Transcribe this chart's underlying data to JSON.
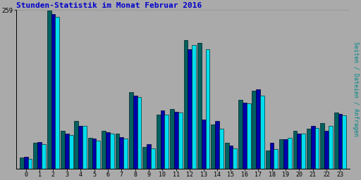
{
  "title": "Stunden-Statistik im Monat Februar 2016",
  "ylabel": "Seiten / Dateien / Anfragen",
  "hours": [
    0,
    1,
    2,
    3,
    4,
    5,
    6,
    7,
    8,
    9,
    10,
    11,
    12,
    13,
    14,
    15,
    16,
    17,
    18,
    19,
    20,
    21,
    22,
    23
  ],
  "ymax": 259,
  "bg_color": "#aaaaaa",
  "title_color": "#0000cc",
  "ylabel_color": "#008888",
  "bar_green": [
    18,
    42,
    258,
    62,
    78,
    50,
    62,
    58,
    125,
    36,
    88,
    98,
    210,
    205,
    72,
    42,
    112,
    128,
    30,
    48,
    62,
    65,
    75,
    92
  ],
  "bar_blue": [
    20,
    44,
    253,
    57,
    70,
    49,
    60,
    52,
    120,
    40,
    95,
    93,
    195,
    80,
    78,
    38,
    108,
    130,
    42,
    48,
    57,
    70,
    62,
    90
  ],
  "bar_cyan": [
    16,
    40,
    248,
    55,
    70,
    46,
    57,
    49,
    117,
    33,
    88,
    92,
    202,
    195,
    65,
    33,
    107,
    120,
    32,
    50,
    57,
    67,
    70,
    87
  ],
  "green_color": "#006060",
  "blue_color": "#0000aa",
  "cyan_color": "#00ddee"
}
